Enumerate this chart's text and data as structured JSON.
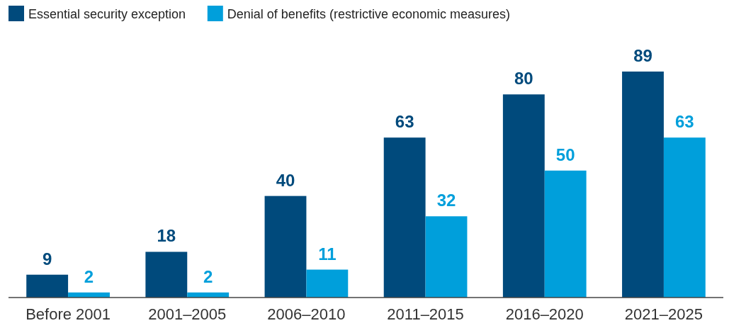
{
  "chart_data": {
    "type": "bar",
    "categories": [
      "Before 2001",
      "2001–2005",
      "2006–2010",
      "2011–2015",
      "2016–2020",
      "2021–2025"
    ],
    "series": [
      {
        "name": "Essential security exception",
        "color": "#004a7c",
        "values": [
          9,
          18,
          40,
          63,
          80,
          89
        ]
      },
      {
        "name": "Denial of benefits (restrictive economic measures)",
        "color": "#009fdb",
        "values": [
          2,
          2,
          11,
          32,
          50,
          63
        ]
      }
    ],
    "data_labels": true,
    "legend": "top left"
  }
}
